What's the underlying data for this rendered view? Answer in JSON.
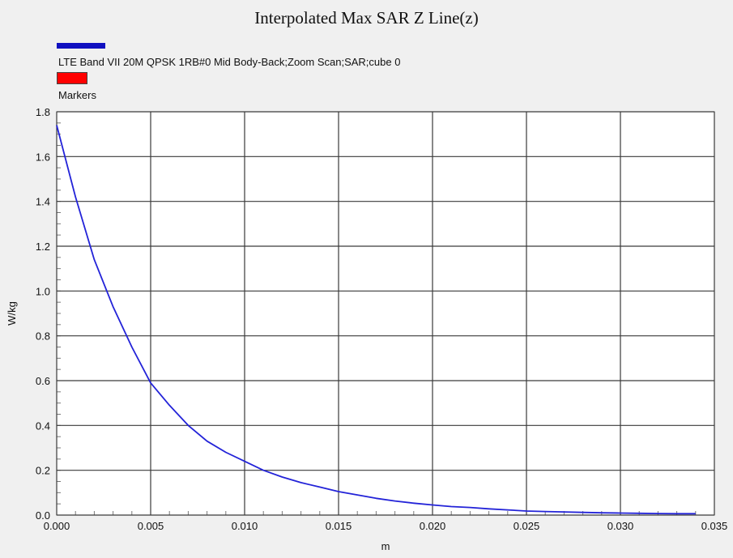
{
  "chart_data": {
    "type": "line",
    "title": "Interpolated Max SAR Z Line(z)",
    "xlabel": "m",
    "ylabel": "W/kg",
    "xlim": [
      0.0,
      0.035
    ],
    "ylim": [
      0.0,
      1.8
    ],
    "x_ticks": [
      "0.000",
      "0.005",
      "0.010",
      "0.015",
      "0.020",
      "0.025",
      "0.030",
      "0.035"
    ],
    "y_ticks": [
      "0.0",
      "0.2",
      "0.4",
      "0.6",
      "0.8",
      "1.0",
      "1.2",
      "1.4",
      "1.6",
      "1.8"
    ],
    "grid": true,
    "legend_placement": "top-left",
    "legend": [
      {
        "label": "LTE Band VII 20M QPSK 1RB#0 Mid Body-Back;Zoom Scan;SAR;cube 0",
        "color": "#1010c0"
      },
      {
        "label": "Markers",
        "color": "#ff0000"
      }
    ],
    "series": [
      {
        "name": "LTE Band VII 20M QPSK 1RB#0 Mid Body-Back;Zoom Scan;SAR;cube 0",
        "color": "#2323d8",
        "x": [
          0.0,
          0.001,
          0.002,
          0.003,
          0.004,
          0.005,
          0.006,
          0.007,
          0.008,
          0.009,
          0.01,
          0.011,
          0.012,
          0.013,
          0.014,
          0.015,
          0.016,
          0.017,
          0.018,
          0.019,
          0.02,
          0.021,
          0.022,
          0.023,
          0.024,
          0.025,
          0.026,
          0.027,
          0.028,
          0.029,
          0.03,
          0.031,
          0.032,
          0.033,
          0.034
        ],
        "y": [
          1.74,
          1.42,
          1.14,
          0.93,
          0.75,
          0.59,
          0.49,
          0.4,
          0.33,
          0.28,
          0.24,
          0.2,
          0.17,
          0.145,
          0.125,
          0.105,
          0.09,
          0.075,
          0.063,
          0.053,
          0.045,
          0.038,
          0.034,
          0.028,
          0.023,
          0.018,
          0.016,
          0.014,
          0.012,
          0.01,
          0.009,
          0.008,
          0.007,
          0.006,
          0.006
        ]
      }
    ]
  }
}
